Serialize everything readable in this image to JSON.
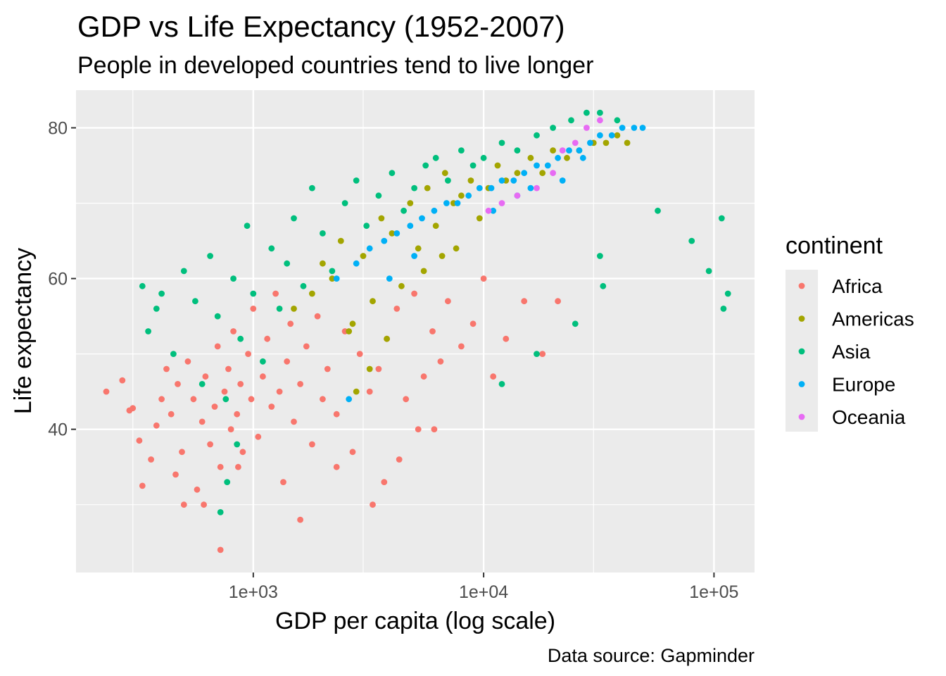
{
  "chart_data": {
    "type": "scatter",
    "title": "GDP vs Life Expectancy (1952-2007)",
    "subtitle": "People in developed countries tend to live longer",
    "xlabel": "GDP per capita (log scale)",
    "ylabel": "Life expectancy",
    "caption": "Data source: Gapminder",
    "x_scale": "log10",
    "xlim": [
      170,
      150000
    ],
    "ylim": [
      21,
      85
    ],
    "x_ticks": [
      1000,
      10000,
      100000
    ],
    "x_tick_labels": [
      "1e+03",
      "1e+04",
      "1e+05"
    ],
    "x_minor_ticks": [
      300,
      3000,
      30000
    ],
    "y_ticks": [
      40,
      60,
      80
    ],
    "y_tick_labels": [
      "40",
      "60",
      "80"
    ],
    "y_minor_ticks": [
      30,
      50,
      70
    ],
    "grid": true,
    "background": "#ebebeb",
    "legend": {
      "title": "continent",
      "placement": "right",
      "entries": [
        "Africa",
        "Americas",
        "Asia",
        "Europe",
        "Oceania"
      ]
    },
    "series": [
      {
        "name": "Africa",
        "color": "#F8766D",
        "points": [
          [
            230,
            45
          ],
          [
            270,
            46.5
          ],
          [
            290,
            42.5
          ],
          [
            300,
            42.8
          ],
          [
            320,
            38.5
          ],
          [
            330,
            32.5
          ],
          [
            360,
            36
          ],
          [
            380,
            40.5
          ],
          [
            400,
            44
          ],
          [
            420,
            48
          ],
          [
            440,
            42
          ],
          [
            470,
            46
          ],
          [
            490,
            37
          ],
          [
            500,
            30
          ],
          [
            520,
            49
          ],
          [
            550,
            44
          ],
          [
            570,
            32
          ],
          [
            600,
            41
          ],
          [
            620,
            47
          ],
          [
            650,
            38
          ],
          [
            680,
            43
          ],
          [
            700,
            51
          ],
          [
            720,
            35
          ],
          [
            750,
            45
          ],
          [
            780,
            48
          ],
          [
            800,
            40
          ],
          [
            820,
            53
          ],
          [
            850,
            42
          ],
          [
            880,
            46
          ],
          [
            900,
            37
          ],
          [
            950,
            50
          ],
          [
            980,
            44
          ],
          [
            1000,
            56
          ],
          [
            1050,
            39
          ],
          [
            1100,
            47
          ],
          [
            1150,
            52
          ],
          [
            1200,
            43
          ],
          [
            1250,
            58
          ],
          [
            1300,
            45
          ],
          [
            1350,
            33
          ],
          [
            1400,
            49
          ],
          [
            1450,
            54
          ],
          [
            1500,
            41
          ],
          [
            1600,
            46
          ],
          [
            1700,
            51
          ],
          [
            1800,
            38
          ],
          [
            1900,
            55
          ],
          [
            2000,
            44
          ],
          [
            2100,
            48
          ],
          [
            2300,
            42
          ],
          [
            2500,
            53
          ],
          [
            2700,
            37
          ],
          [
            2900,
            50
          ],
          [
            3200,
            45
          ],
          [
            3500,
            48
          ],
          [
            3800,
            52
          ],
          [
            4200,
            56
          ],
          [
            4600,
            44
          ],
          [
            5000,
            58
          ],
          [
            5500,
            47
          ],
          [
            6000,
            53
          ],
          [
            6500,
            49
          ],
          [
            7000,
            57
          ],
          [
            8000,
            51
          ],
          [
            9000,
            54
          ],
          [
            10000,
            60
          ],
          [
            11000,
            47
          ],
          [
            12500,
            52
          ],
          [
            15000,
            57
          ],
          [
            18000,
            50
          ],
          [
            21000,
            57
          ],
          [
            3300,
            30
          ],
          [
            3700,
            33
          ],
          [
            4300,
            36
          ],
          [
            5200,
            40
          ],
          [
            6100,
            40
          ],
          [
            720,
            24
          ],
          [
            2300,
            35
          ],
          [
            460,
            34
          ],
          [
            1600,
            28
          ],
          [
            860,
            35
          ],
          [
            610,
            30
          ]
        ]
      },
      {
        "name": "Americas",
        "color": "#A3A500",
        "points": [
          [
            1500,
            56
          ],
          [
            1800,
            58
          ],
          [
            2000,
            62
          ],
          [
            2200,
            60
          ],
          [
            2400,
            65
          ],
          [
            2700,
            54
          ],
          [
            3000,
            63
          ],
          [
            3300,
            57
          ],
          [
            3600,
            68
          ],
          [
            4000,
            66
          ],
          [
            4400,
            59
          ],
          [
            4800,
            70
          ],
          [
            5200,
            64
          ],
          [
            5700,
            72
          ],
          [
            6200,
            67
          ],
          [
            6800,
            74
          ],
          [
            7400,
            70
          ],
          [
            8000,
            71
          ],
          [
            8800,
            73
          ],
          [
            9600,
            68
          ],
          [
            10500,
            72
          ],
          [
            11500,
            75
          ],
          [
            12500,
            73
          ],
          [
            14000,
            74
          ],
          [
            16000,
            76
          ],
          [
            18000,
            74
          ],
          [
            20000,
            77
          ],
          [
            23000,
            76
          ],
          [
            26000,
            77
          ],
          [
            30000,
            78
          ],
          [
            34000,
            78
          ],
          [
            38000,
            79
          ],
          [
            42000,
            78
          ],
          [
            3200,
            48
          ],
          [
            3800,
            52
          ],
          [
            2600,
            53
          ],
          [
            5500,
            61
          ],
          [
            6600,
            63
          ],
          [
            7600,
            64
          ],
          [
            2800,
            45
          ]
        ]
      },
      {
        "name": "Asia",
        "color": "#00BF7D",
        "points": [
          [
            330,
            59
          ],
          [
            350,
            53
          ],
          [
            380,
            56
          ],
          [
            400,
            58
          ],
          [
            450,
            50
          ],
          [
            500,
            61
          ],
          [
            560,
            57
          ],
          [
            600,
            46
          ],
          [
            650,
            63
          ],
          [
            700,
            55
          ],
          [
            760,
            44
          ],
          [
            820,
            60
          ],
          [
            880,
            52
          ],
          [
            940,
            67
          ],
          [
            1000,
            58
          ],
          [
            1100,
            49
          ],
          [
            1200,
            64
          ],
          [
            1300,
            56
          ],
          [
            1400,
            62
          ],
          [
            1500,
            68
          ],
          [
            1650,
            59
          ],
          [
            1800,
            72
          ],
          [
            2000,
            66
          ],
          [
            2200,
            61
          ],
          [
            2500,
            70
          ],
          [
            2800,
            73
          ],
          [
            3100,
            67
          ],
          [
            3500,
            71
          ],
          [
            4000,
            74
          ],
          [
            4500,
            69
          ],
          [
            5000,
            72
          ],
          [
            5600,
            75
          ],
          [
            6200,
            76
          ],
          [
            7000,
            73
          ],
          [
            8000,
            77
          ],
          [
            9000,
            75
          ],
          [
            10000,
            76
          ],
          [
            12000,
            78
          ],
          [
            14000,
            77
          ],
          [
            17000,
            79
          ],
          [
            20000,
            80
          ],
          [
            24000,
            81
          ],
          [
            28000,
            82
          ],
          [
            32000,
            82
          ],
          [
            38000,
            81
          ],
          [
            57000,
            69
          ],
          [
            80000,
            65
          ],
          [
            95000,
            61
          ],
          [
            108000,
            68
          ],
          [
            110000,
            56
          ],
          [
            115000,
            58
          ],
          [
            33000,
            59
          ],
          [
            32000,
            63
          ],
          [
            12000,
            46
          ],
          [
            17000,
            50
          ],
          [
            25000,
            54
          ],
          [
            720,
            29
          ],
          [
            770,
            33
          ],
          [
            850,
            38
          ]
        ]
      },
      {
        "name": "Europe",
        "color": "#00B0F6",
        "points": [
          [
            2300,
            60
          ],
          [
            2800,
            62
          ],
          [
            3200,
            64
          ],
          [
            3700,
            65
          ],
          [
            4200,
            66
          ],
          [
            4800,
            67
          ],
          [
            5400,
            68
          ],
          [
            6100,
            69
          ],
          [
            6900,
            70
          ],
          [
            7700,
            70
          ],
          [
            8600,
            71
          ],
          [
            9600,
            72
          ],
          [
            10800,
            72
          ],
          [
            12000,
            73
          ],
          [
            13500,
            73
          ],
          [
            15000,
            74
          ],
          [
            17000,
            75
          ],
          [
            19000,
            75
          ],
          [
            21000,
            76
          ],
          [
            23500,
            77
          ],
          [
            26000,
            77
          ],
          [
            29000,
            78
          ],
          [
            32000,
            79
          ],
          [
            36000,
            79
          ],
          [
            40000,
            80
          ],
          [
            45000,
            80
          ],
          [
            49000,
            80
          ],
          [
            3900,
            60
          ],
          [
            5000,
            63
          ],
          [
            11000,
            69
          ],
          [
            16000,
            72
          ],
          [
            22000,
            73
          ],
          [
            14000,
            71
          ],
          [
            27000,
            76
          ],
          [
            2600,
            44
          ]
        ]
      },
      {
        "name": "Oceania",
        "color": "#E76BF3",
        "points": [
          [
            10500,
            69
          ],
          [
            12000,
            70
          ],
          [
            14000,
            71
          ],
          [
            17000,
            72
          ],
          [
            20000,
            74
          ],
          [
            22000,
            77
          ],
          [
            25000,
            78
          ],
          [
            28000,
            80
          ],
          [
            32000,
            81
          ]
        ]
      }
    ]
  }
}
